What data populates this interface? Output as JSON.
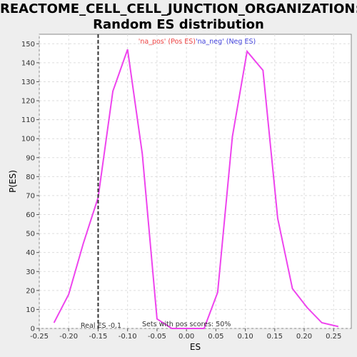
{
  "title_lines": [
    "REACTOME_CELL_CELL_JUNCTION_ORGANIZATION:",
    "Random ES distribution"
  ],
  "chart_data": {
    "type": "line",
    "title": "REACTOME_CELL_CELL_JUNCTION_ORGANIZATION: Random ES distribution",
    "xlabel": "ES",
    "ylabel": "P(ES)",
    "xlim": [
      -0.25,
      0.28
    ],
    "ylim": [
      0,
      155
    ],
    "xticks": [
      -0.25,
      -0.2,
      -0.15,
      -0.1,
      -0.05,
      0.0,
      0.05,
      0.1,
      0.15,
      0.2,
      0.25
    ],
    "xtick_labels": [
      "-0.25",
      "-0.20",
      "-0.15",
      "-0.10",
      "-0.05",
      "0.00",
      "0.05",
      "0.10",
      "0.15",
      "0.20",
      "0.25"
    ],
    "yticks": [
      0,
      10,
      20,
      30,
      40,
      50,
      60,
      70,
      80,
      90,
      100,
      110,
      120,
      130,
      140,
      150
    ],
    "grid": true,
    "series": [
      {
        "color": "#ee44ee",
        "x": [
          -0.225,
          -0.2,
          -0.175,
          -0.15,
          -0.125,
          -0.1,
          -0.075,
          -0.05,
          -0.025,
          0.0,
          0.03,
          0.053,
          0.078,
          0.103,
          0.13,
          0.155,
          0.18,
          0.205,
          0.23,
          0.258
        ],
        "y": [
          3,
          18,
          45,
          69,
          125,
          147,
          92,
          5,
          0,
          0,
          0,
          19,
          101,
          146,
          136,
          58,
          21,
          11,
          3,
          1
        ]
      }
    ],
    "vline": {
      "x": -0.15,
      "style": "dashed",
      "color": "#333333"
    },
    "annotations": {
      "pos_label": "'na_pos' (Pos ES)",
      "neg_label": "'na_neg' (Neg ES)",
      "pos_color": "#ee4444",
      "neg_color": "#4444dd",
      "real_es": "Real ES -0.1",
      "sets_with_pos": "Sets with pos scores: 50%"
    }
  }
}
